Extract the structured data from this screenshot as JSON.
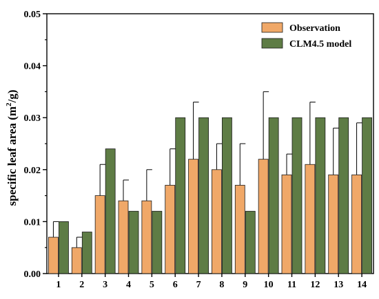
{
  "chart_data": {
    "type": "bar",
    "categories": [
      "1",
      "2",
      "3",
      "4",
      "5",
      "6",
      "7",
      "8",
      "9",
      "10",
      "11",
      "12",
      "13",
      "14"
    ],
    "series": [
      {
        "name": "Observation",
        "values": [
          0.007,
          0.005,
          0.015,
          0.014,
          0.014,
          0.017,
          0.022,
          0.02,
          0.017,
          0.022,
          0.019,
          0.021,
          0.019,
          0.019
        ],
        "error_upper": [
          0.01,
          0.007,
          0.021,
          0.018,
          0.02,
          0.024,
          0.033,
          0.025,
          0.025,
          0.035,
          0.023,
          0.033,
          0.028,
          0.029
        ],
        "color": "#F0A868"
      },
      {
        "name": "CLM4.5 model",
        "values": [
          0.01,
          0.008,
          0.024,
          0.012,
          0.012,
          0.03,
          0.03,
          0.03,
          0.012,
          0.03,
          0.03,
          0.03,
          0.03,
          0.03
        ],
        "color": "#5E7C45"
      }
    ],
    "ylabel_main": "specific leaf area (m",
    "ylabel_sup": "2",
    "ylabel_end": "/g)",
    "ylim": [
      0,
      0.05
    ],
    "yticks": [
      "0.00",
      "0.01",
      "0.02",
      "0.03",
      "0.04",
      "0.05"
    ],
    "legend_position": "top-right",
    "grid": false
  }
}
